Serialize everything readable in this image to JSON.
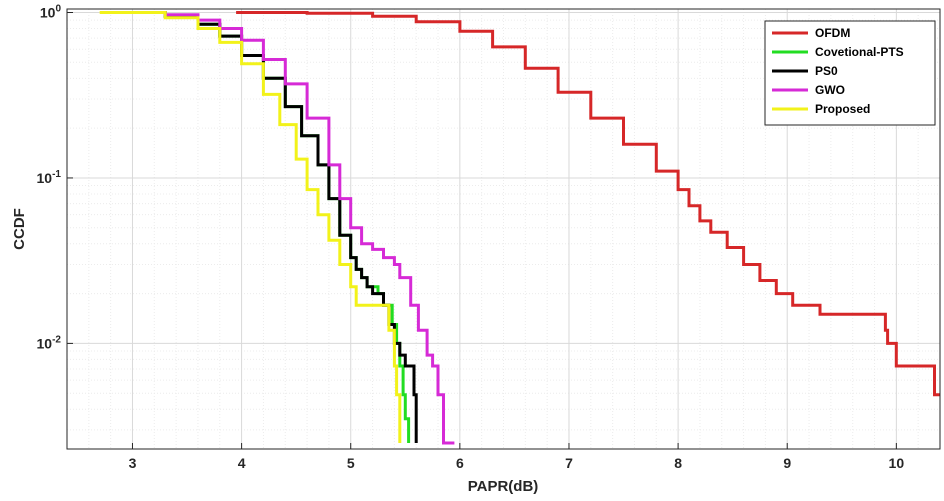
{
  "chart_data": {
    "type": "line",
    "title": "",
    "xlabel": "PAPR(dB)",
    "ylabel": "CCDF",
    "xlim": [
      2.4,
      10.4
    ],
    "ylim": [
      0.0023,
      1.05
    ],
    "y_scale": "log",
    "grid": true,
    "legend_position": "top-right",
    "x_ticks": [
      3,
      4,
      5,
      6,
      7,
      8,
      9,
      10
    ],
    "y_ticks": [
      {
        "value": 1,
        "base": "10",
        "exp": "0"
      },
      {
        "value": 0.1,
        "base": "10",
        "exp": "-1"
      },
      {
        "value": 0.01,
        "base": "10",
        "exp": "-2"
      }
    ],
    "series": [
      {
        "name": "OFDM",
        "color": "#d62728",
        "x": [
          3.95,
          4.6,
          5.2,
          5.6,
          6.0,
          6.3,
          6.6,
          6.9,
          7.2,
          7.5,
          7.8,
          8.0,
          8.1,
          8.2,
          8.3,
          8.45,
          8.6,
          8.75,
          8.9,
          9.05,
          9.1,
          9.3,
          9.5,
          9.8,
          9.9,
          9.92,
          10.0,
          10.3,
          10.35,
          10.4
        ],
        "y": [
          1.0,
          0.99,
          0.95,
          0.88,
          0.77,
          0.62,
          0.46,
          0.33,
          0.23,
          0.16,
          0.11,
          0.085,
          0.068,
          0.055,
          0.047,
          0.038,
          0.03,
          0.024,
          0.02,
          0.017,
          0.017,
          0.015,
          0.015,
          0.015,
          0.012,
          0.01,
          0.0073,
          0.0073,
          0.0049,
          0.0049
        ]
      },
      {
        "name": "Covetional-PTS",
        "color": "#22dd22",
        "x": [
          2.95,
          3.3,
          3.6,
          3.8,
          4.0,
          4.2,
          4.4,
          4.55,
          4.7,
          4.8,
          4.9,
          5.0,
          5.05,
          5.1,
          5.15,
          5.25,
          5.3,
          5.32,
          5.38,
          5.42,
          5.45,
          5.48,
          5.5,
          5.53
        ],
        "y": [
          1.0,
          0.95,
          0.85,
          0.72,
          0.55,
          0.4,
          0.27,
          0.18,
          0.12,
          0.075,
          0.045,
          0.033,
          0.028,
          0.025,
          0.022,
          0.02,
          0.017,
          0.017,
          0.013,
          0.01,
          0.0073,
          0.0049,
          0.0035,
          0.0025
        ]
      },
      {
        "name": "PS0",
        "color": "#000000",
        "x": [
          2.95,
          3.3,
          3.6,
          3.8,
          4.0,
          4.2,
          4.4,
          4.55,
          4.7,
          4.8,
          4.9,
          5.0,
          5.05,
          5.1,
          5.15,
          5.2,
          5.25,
          5.3,
          5.35,
          5.4,
          5.45,
          5.5,
          5.55,
          5.58,
          5.6
        ],
        "y": [
          1.0,
          0.95,
          0.85,
          0.72,
          0.55,
          0.4,
          0.27,
          0.18,
          0.12,
          0.075,
          0.045,
          0.033,
          0.028,
          0.025,
          0.022,
          0.02,
          0.02,
          0.017,
          0.013,
          0.01,
          0.0085,
          0.0073,
          0.0073,
          0.0049,
          0.0025
        ]
      },
      {
        "name": "GWO",
        "color": "#d62ad6",
        "x": [
          2.95,
          3.3,
          3.6,
          3.8,
          4.0,
          4.2,
          4.4,
          4.6,
          4.8,
          4.9,
          5.0,
          5.1,
          5.2,
          5.3,
          5.4,
          5.45,
          5.55,
          5.62,
          5.7,
          5.75,
          5.8,
          5.85,
          5.95
        ],
        "y": [
          1.0,
          0.97,
          0.9,
          0.8,
          0.68,
          0.52,
          0.37,
          0.23,
          0.12,
          0.075,
          0.05,
          0.04,
          0.037,
          0.033,
          0.03,
          0.025,
          0.017,
          0.012,
          0.0085,
          0.0073,
          0.0049,
          0.0025,
          0.0025
        ]
      },
      {
        "name": "Proposed",
        "color": "#f2f21a",
        "x": [
          2.7,
          3.0,
          3.3,
          3.6,
          3.8,
          4.0,
          4.2,
          4.35,
          4.5,
          4.6,
          4.7,
          4.8,
          4.9,
          5.0,
          5.05,
          5.1,
          5.15,
          5.3,
          5.35,
          5.4,
          5.42,
          5.45
        ],
        "y": [
          1.0,
          1.0,
          0.93,
          0.8,
          0.66,
          0.49,
          0.32,
          0.21,
          0.13,
          0.085,
          0.06,
          0.042,
          0.03,
          0.022,
          0.017,
          0.017,
          0.017,
          0.017,
          0.012,
          0.0073,
          0.0049,
          0.0025
        ]
      }
    ]
  }
}
